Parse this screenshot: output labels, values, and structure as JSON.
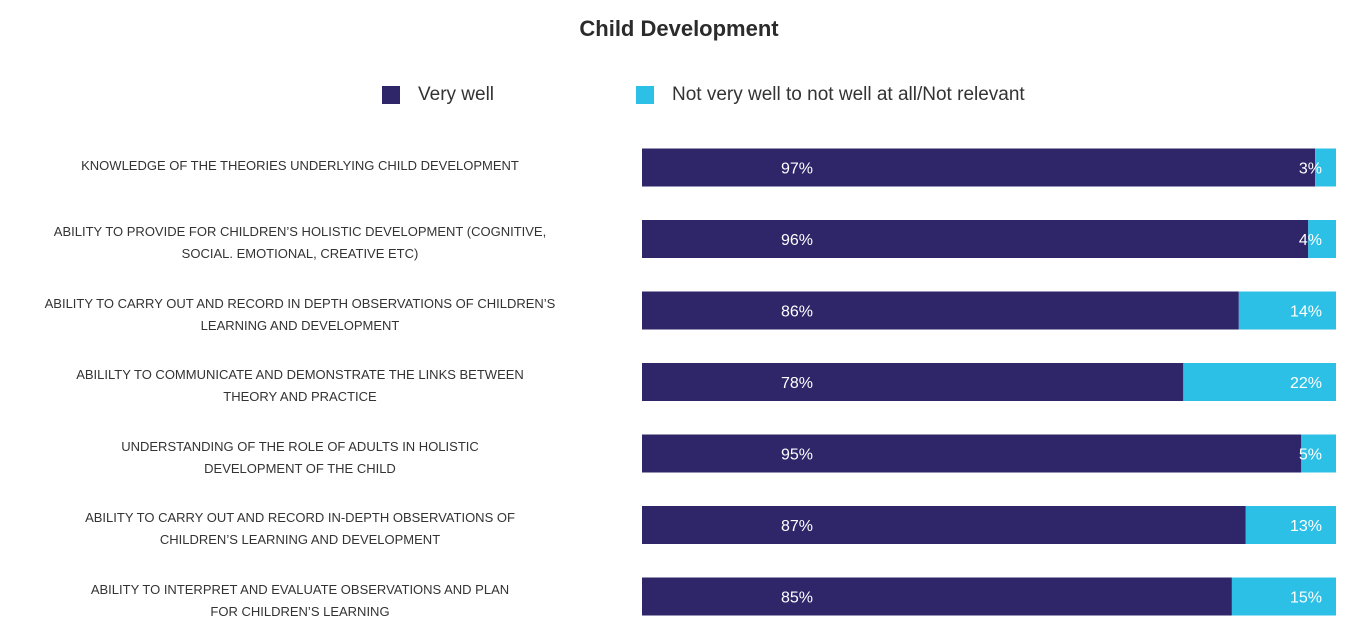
{
  "chart_data": {
    "type": "bar",
    "orientation": "horizontal",
    "stacked": true,
    "title": "Child Development",
    "categories": [
      "KNOWLEDGE OF THE THEORIES UNDERLYING CHILD DEVELOPMENT",
      "ABILITY TO PROVIDE FOR CHILDREN’S HOLISTIC DEVELOPMENT (COGNITIVE, SOCIAL. EMOTIONAL, CREATIVE ETC)",
      "ABILITY TO CARRY OUT AND RECORD IN DEPTH OBSERVATIONS OF CHILDREN’S LEARNING AND DEVELOPMENT",
      "ABILILTY TO COMMUNICATE AND DEMONSTRATE THE LINKS BETWEEN THEORY AND PRACTICE",
      "UNDERSTANDING OF THE ROLE OF ADULTS IN HOLISTIC DEVELOPMENT OF THE CHILD",
      "ABILITY TO CARRY OUT AND RECORD IN-DEPTH OBSERVATIONS OF CHILDREN’S LEARNING AND DEVELOPMENT",
      "ABILITY TO INTERPRET AND EVALUATE OBSERVATIONS AND PLAN FOR CHILDREN’S LEARNING"
    ],
    "category_lines": [
      [
        "KNOWLEDGE OF THE THEORIES UNDERLYING CHILD DEVELOPMENT"
      ],
      [
        "ABILITY TO PROVIDE FOR CHILDREN’S HOLISTIC DEVELOPMENT (COGNITIVE,",
        "SOCIAL. EMOTIONAL, CREATIVE ETC)"
      ],
      [
        "ABILITY TO CARRY OUT AND RECORD IN DEPTH OBSERVATIONS OF CHILDREN’S",
        "LEARNING AND DEVELOPMENT"
      ],
      [
        "ABILILTY TO COMMUNICATE AND DEMONSTRATE THE LINKS BETWEEN",
        "THEORY AND PRACTICE"
      ],
      [
        "UNDERSTANDING OF THE ROLE OF ADULTS IN HOLISTIC",
        "DEVELOPMENT OF THE CHILD"
      ],
      [
        "ABILITY TO CARRY OUT AND RECORD IN-DEPTH OBSERVATIONS OF",
        "CHILDREN’S LEARNING AND DEVELOPMENT"
      ],
      [
        "ABILITY TO INTERPRET AND EVALUATE OBSERVATIONS AND PLAN",
        "FOR CHILDREN’S LEARNING"
      ]
    ],
    "series": [
      {
        "name": "Very well",
        "color": "#2e2669",
        "values": [
          97,
          96,
          86,
          78,
          95,
          87,
          85
        ]
      },
      {
        "name": "Not very well to not well at all/Not relevant",
        "color": "#2dc0e6",
        "values": [
          3,
          4,
          14,
          22,
          5,
          13,
          15
        ]
      }
    ],
    "xlim": [
      0,
      100
    ],
    "value_suffix": "%",
    "legend_position": "top",
    "grid": false
  }
}
